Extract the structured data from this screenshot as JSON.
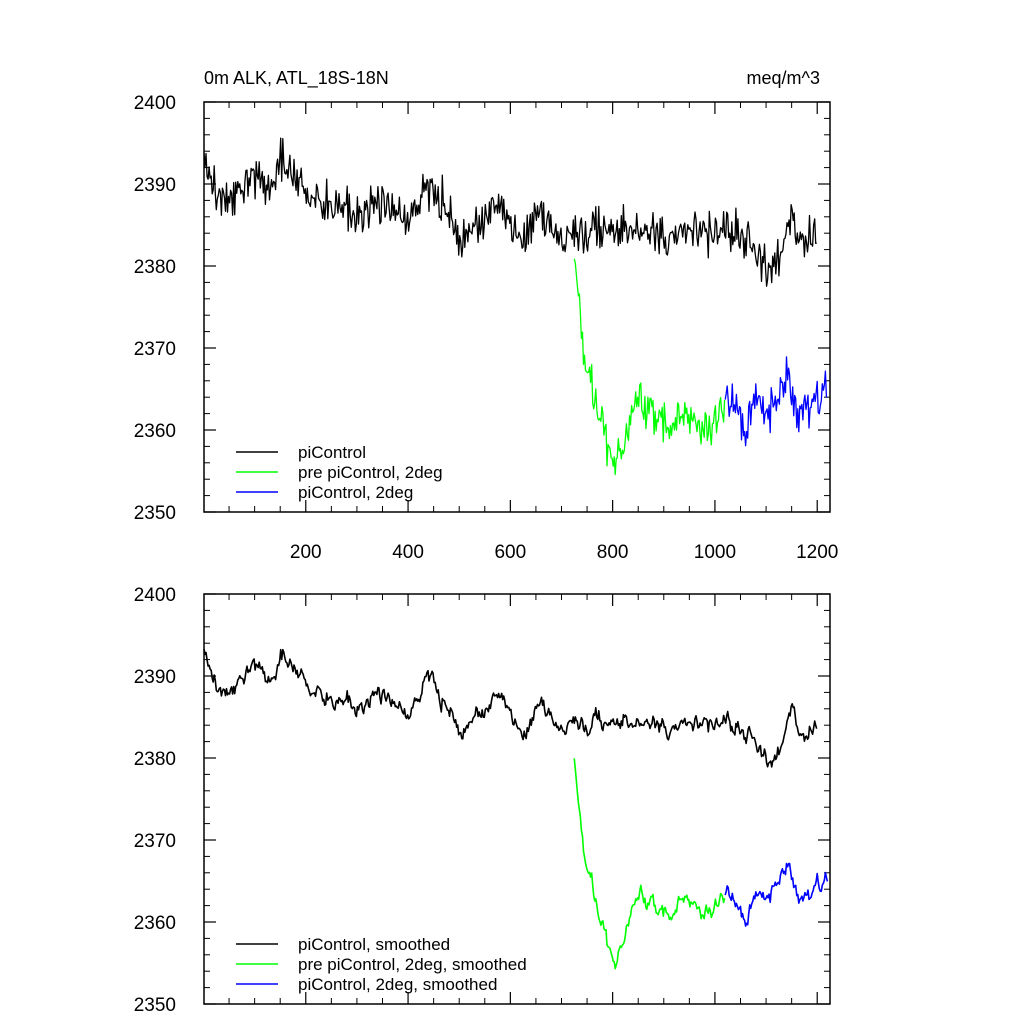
{
  "chart_data": [
    {
      "type": "line",
      "title_left": "0m ALK, ATL_18S-18N",
      "title_right": "meq/m^3",
      "xlim": [
        1,
        1225
      ],
      "ylim": [
        2350,
        2400
      ],
      "x_ticks": [
        200,
        400,
        600,
        800,
        1000,
        1200
      ],
      "y_ticks": [
        2350,
        2360,
        2370,
        2380,
        2390,
        2400
      ],
      "show_x_labels": true,
      "grid": false,
      "legend": [
        "piControl",
        "pre piControl, 2deg",
        "piControl, 2deg"
      ],
      "legend_position": "bottom-left",
      "series": [
        {
          "name": "piControl",
          "color": "#000000",
          "x": [
            1,
            25,
            50,
            75,
            100,
            125,
            150,
            175,
            200,
            225,
            250,
            275,
            300,
            325,
            350,
            375,
            400,
            425,
            450,
            475,
            500,
            525,
            550,
            575,
            600,
            625,
            650,
            675,
            700,
            725,
            750,
            775,
            800,
            825,
            850,
            875,
            900,
            925,
            950,
            975,
            1000,
            1025,
            1050,
            1075,
            1100,
            1125,
            1150,
            1175,
            1200
          ],
          "y": [
            2393,
            2389,
            2388,
            2389,
            2391,
            2390,
            2393,
            2391,
            2389,
            2388,
            2388,
            2387,
            2386,
            2387,
            2388,
            2387,
            2386,
            2388,
            2390,
            2387,
            2383,
            2384,
            2386,
            2387,
            2385,
            2384,
            2386,
            2385,
            2382,
            2384,
            2384,
            2385,
            2384,
            2385,
            2384,
            2384,
            2383,
            2384,
            2385,
            2384,
            2384,
            2385,
            2384,
            2382,
            2380,
            2381,
            2386,
            2383,
            2384
          ]
        },
        {
          "name": "pre piControl, 2deg",
          "color": "#00ff00",
          "x": [
            725,
            735,
            745,
            760,
            775,
            790,
            805,
            820,
            840,
            860,
            880,
            900,
            920,
            940,
            960,
            980,
            1000,
            1020
          ],
          "y": [
            2381,
            2374,
            2368,
            2365,
            2362,
            2358,
            2357,
            2358,
            2364,
            2363,
            2362,
            2361,
            2361,
            2362,
            2361,
            2360,
            2361,
            2363
          ]
        },
        {
          "name": "piControl, 2deg",
          "color": "#0000ff",
          "x": [
            1020,
            1040,
            1060,
            1080,
            1100,
            1120,
            1140,
            1160,
            1180,
            1200,
            1220
          ],
          "y": [
            2363,
            2364,
            2360,
            2364,
            2362,
            2363,
            2366,
            2362,
            2363,
            2364,
            2365
          ]
        }
      ]
    },
    {
      "type": "line",
      "xlim": [
        1,
        1225
      ],
      "ylim": [
        2350,
        2400
      ],
      "x_ticks": [
        200,
        400,
        600,
        800,
        1000,
        1200
      ],
      "y_ticks": [
        2350,
        2360,
        2370,
        2380,
        2390,
        2400
      ],
      "show_x_labels": false,
      "grid": false,
      "legend": [
        "piControl, smoothed",
        "pre piControl, 2deg, smoothed",
        "piControl, 2deg, smoothed"
      ],
      "legend_position": "bottom-left",
      "series": [
        {
          "name": "piControl, smoothed",
          "color": "#000000",
          "x": [
            1,
            25,
            50,
            75,
            100,
            125,
            150,
            175,
            200,
            225,
            250,
            275,
            300,
            325,
            350,
            375,
            400,
            425,
            450,
            475,
            500,
            525,
            550,
            575,
            600,
            625,
            650,
            675,
            700,
            725,
            750,
            775,
            800,
            825,
            850,
            875,
            900,
            925,
            950,
            975,
            1000,
            1025,
            1050,
            1075,
            1100,
            1125,
            1150,
            1175,
            1200
          ],
          "y": [
            2393,
            2389,
            2388,
            2389,
            2391,
            2390,
            2393,
            2391,
            2389,
            2388,
            2388,
            2387,
            2386,
            2387,
            2388,
            2387,
            2386,
            2388,
            2390,
            2387,
            2383,
            2384,
            2386,
            2387,
            2385,
            2384,
            2386,
            2385,
            2382,
            2384,
            2384,
            2385,
            2384,
            2385,
            2384,
            2384,
            2383,
            2384,
            2385,
            2384,
            2384,
            2385,
            2384,
            2382,
            2380,
            2381,
            2386,
            2383,
            2384
          ]
        },
        {
          "name": "pre piControl, 2deg, smoothed",
          "color": "#00ff00",
          "x": [
            725,
            735,
            745,
            760,
            775,
            790,
            805,
            820,
            840,
            860,
            880,
            900,
            920,
            940,
            960,
            980,
            1000,
            1020
          ],
          "y": [
            2380,
            2372,
            2367,
            2364,
            2361,
            2357,
            2356,
            2358,
            2364,
            2363,
            2362,
            2361,
            2362,
            2363,
            2362,
            2361,
            2362,
            2363
          ]
        },
        {
          "name": "piControl, 2deg, smoothed",
          "color": "#0000ff",
          "x": [
            1020,
            1040,
            1060,
            1080,
            1100,
            1120,
            1140,
            1160,
            1180,
            1200,
            1220
          ],
          "y": [
            2363,
            2363,
            2361,
            2363,
            2363,
            2364,
            2366,
            2363,
            2363,
            2365,
            2365
          ]
        }
      ]
    }
  ]
}
